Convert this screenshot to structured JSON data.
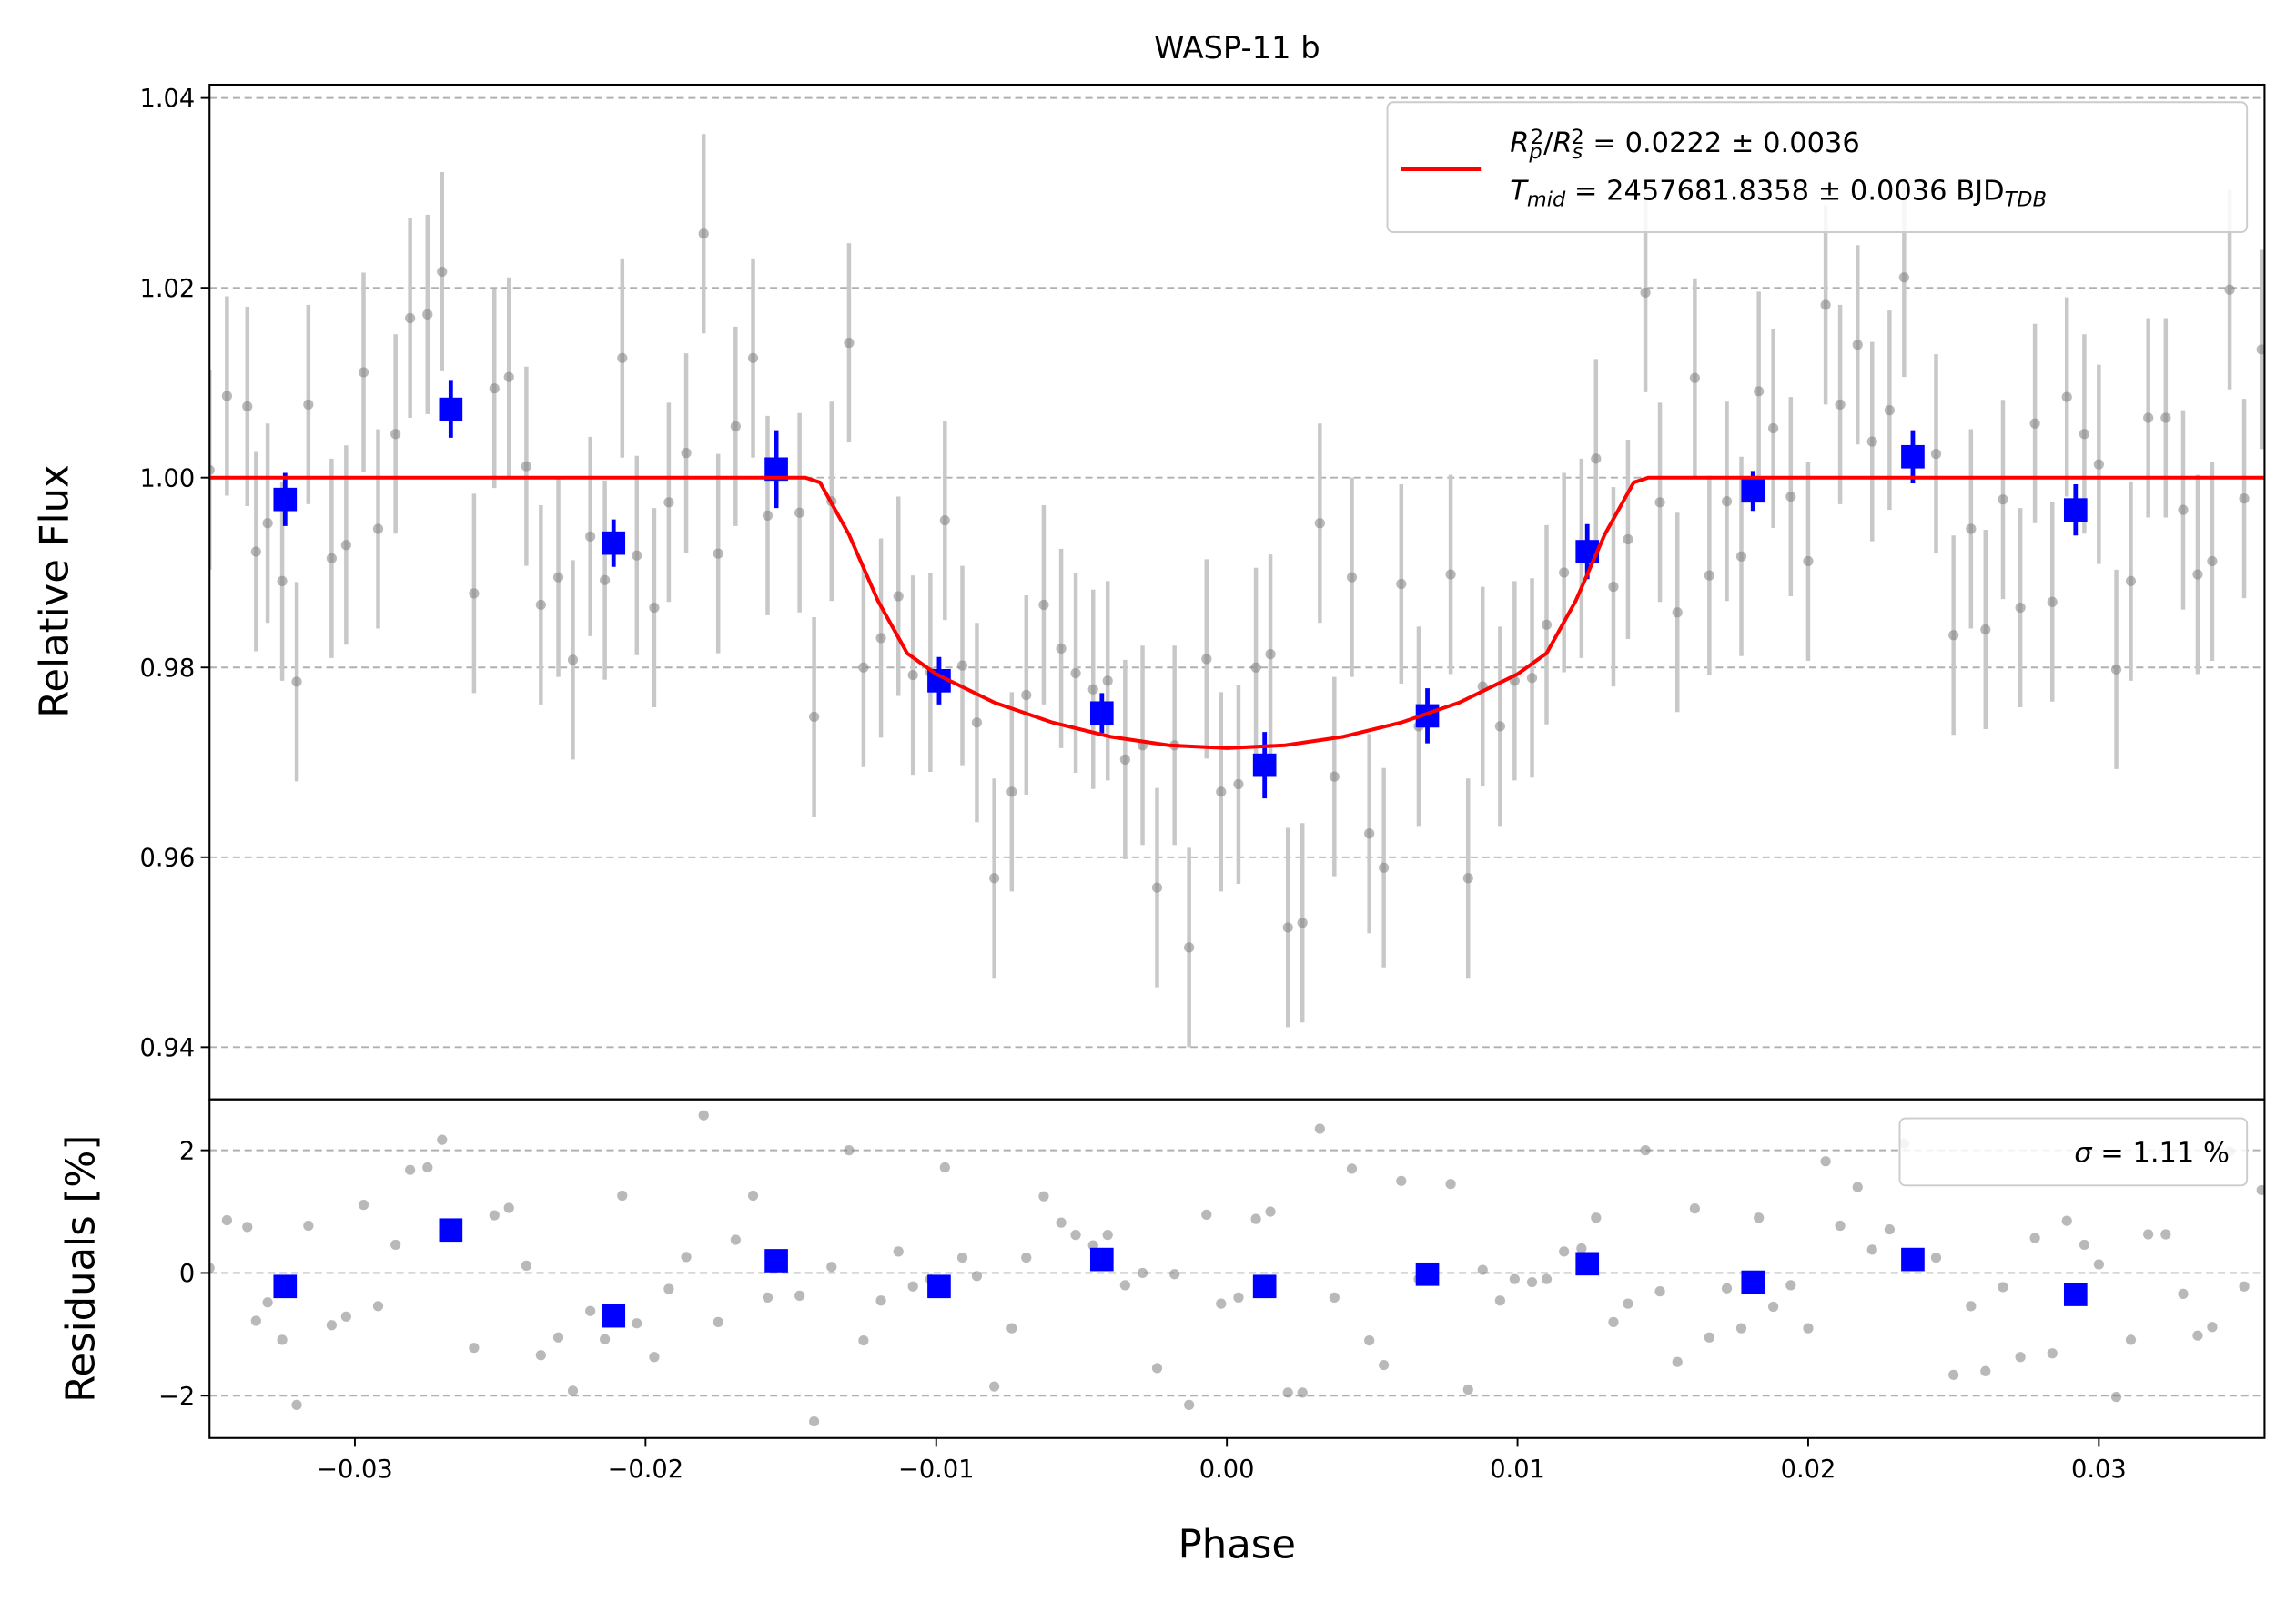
{
  "chart_data": [
    {
      "type": "errorbar",
      "title": "WASP-11 b",
      "ylabel": "Relative Flux",
      "ylim": [
        0.9345,
        1.0414
      ],
      "yticks": [
        0.94,
        0.96,
        0.98,
        {
          "value": 1.0,
          "label": "1.00"
        },
        1.02,
        1.04
      ],
      "grid": true,
      "legend": "upper right",
      "series": [
        {
          "type": "scatter",
          "marker": "circle",
          "color": "#808080",
          "error_color": "#c8c8c8",
          "error": 0.0105,
          "x": [
            -0.035,
            -0.0344,
            -0.0337,
            -0.0334,
            -0.033,
            -0.0325,
            -0.032,
            -0.0316,
            -0.0308,
            -0.0303,
            -0.0297,
            -0.0292,
            -0.0286,
            -0.0281,
            -0.0275,
            -0.027,
            -0.0259,
            -0.0252,
            -0.0247,
            -0.0241,
            -0.0236,
            -0.023,
            -0.0225,
            -0.0219,
            -0.0214,
            -0.0208,
            -0.0203,
            -0.0197,
            -0.0192,
            -0.0186,
            -0.018,
            -0.0175,
            -0.0169,
            -0.0163,
            -0.0158,
            -0.0147,
            -0.0142,
            -0.0136,
            -0.013,
            -0.0125,
            -0.0119,
            -0.0113,
            -0.0108,
            -0.0102,
            -0.0097,
            -0.0091,
            -0.0086,
            -0.008,
            -0.0074,
            -0.0069,
            -0.0063,
            -0.0057,
            -0.0052,
            -0.0046,
            -0.0041,
            -0.0035,
            -0.0029,
            -0.0024,
            -0.0018,
            -0.0013,
            -0.0007,
            -0.0002,
            0.0004,
            0.001,
            0.0015,
            0.0021,
            0.0026,
            0.0032,
            0.0037,
            0.0043,
            0.0049,
            0.0054,
            0.006,
            0.0066,
            0.0077,
            0.0083,
            0.0088,
            0.0094,
            0.0099,
            0.0105,
            0.011,
            0.0116,
            0.0122,
            0.0127,
            0.0133,
            0.0138,
            0.0144,
            0.0149,
            0.0155,
            0.0161,
            0.0166,
            0.0172,
            0.0177,
            0.0183,
            0.0188,
            0.0194,
            0.02,
            0.0206,
            0.0211,
            0.0217,
            0.0222,
            0.0228,
            0.0233,
            0.0244,
            0.025,
            0.0256,
            0.0261,
            0.0267,
            0.0273,
            0.0278,
            0.0284,
            0.0289,
            0.0295,
            0.03,
            0.0306,
            0.0311,
            0.0317,
            0.0323,
            0.0329,
            0.0334,
            0.0339,
            0.0345,
            0.035,
            0.0356
          ],
          "values": [
            1.0008,
            1.0086,
            1.0075,
            0.9922,
            0.9952,
            0.9891,
            0.9785,
            1.0077,
            0.9915,
            0.9929,
            1.0111,
            0.9946,
            1.0046,
            1.0168,
            1.0172,
            1.0217,
            0.9878,
            1.0094,
            1.0106,
            1.0012,
            0.9866,
            0.9895,
            0.9808,
            0.9938,
            0.9892,
            1.0126,
            0.9918,
            0.9863,
            0.9974,
            1.0026,
            1.0257,
            0.992,
            1.0054,
            1.0126,
            0.996,
            0.9963,
            0.9748,
            0.9975,
            1.0142,
            0.98,
            0.9831,
            0.9875,
            0.9792,
            0.9795,
            0.9955,
            0.9802,
            0.9742,
            0.9578,
            0.9669,
            0.9771,
            0.9866,
            0.982,
            0.9794,
            0.9777,
            0.9786,
            0.9703,
            0.9718,
            0.9568,
            0.9718,
            0.9505,
            0.9809,
            0.9669,
            0.9677,
            0.98,
            0.9814,
            0.9526,
            0.9531,
            0.9952,
            0.9685,
            0.9895,
            0.9625,
            0.9589,
            0.9888,
            0.9738,
            0.9898,
            0.9578,
            0.978,
            0.9738,
            0.9786,
            0.9789,
            0.9845,
            0.99,
            0.9915,
            1.002,
            0.9885,
            0.9935,
            1.0195,
            0.9974,
            0.9858,
            1.0105,
            0.9897,
            0.9975,
            0.9917,
            1.0091,
            1.0052,
            0.998,
            0.9912,
            1.0182,
            1.0077,
            1.014,
            1.0038,
            1.0071,
            1.0211,
            1.0025,
            0.9834,
            0.9946,
            0.984,
            0.9977,
            0.9863,
            1.0057,
            0.9869,
            1.0085,
            1.0046,
            1.0014,
            0.9798,
            0.9891,
            1.0063,
            1.0063,
            0.9966,
            0.9898,
            0.9912,
            1.0198,
            0.9978,
            1.0135
          ]
        },
        {
          "type": "scatter",
          "marker": "square",
          "color": "#0000ff",
          "error_color": "#0000ff",
          "x": [
            -0.0324,
            -0.0267,
            -0.0211,
            -0.0155,
            -0.0099,
            -0.0043,
            0.0013,
            0.0069,
            0.0124,
            0.0181,
            0.0236,
            0.0292
          ],
          "values": [
            0.9977,
            1.0072,
            0.9931,
            1.0009,
            0.9786,
            0.9752,
            0.9697,
            0.9749,
            0.9922,
            0.9986,
            1.0022,
            0.9966
          ],
          "errors": [
            0.0028,
            0.003,
            0.0025,
            0.0041,
            0.0025,
            0.0021,
            0.0035,
            0.0029,
            0.0029,
            0.0021,
            0.0028,
            0.0027
          ]
        },
        {
          "type": "line",
          "color": "#ff0000",
          "x": [
            -0.035,
            -0.0145,
            -0.014,
            -0.013,
            -0.012,
            -0.011,
            -0.01,
            -0.008,
            -0.006,
            -0.004,
            -0.002,
            0,
            0.002,
            0.004,
            0.006,
            0.008,
            0.01,
            0.011,
            0.012,
            0.013,
            0.014,
            0.0145,
            0.0357
          ],
          "values": [
            1,
            1,
            0.9995,
            0.994,
            0.987,
            0.9815,
            0.9793,
            0.9763,
            0.9742,
            0.9727,
            0.9718,
            0.9715,
            0.9718,
            0.9727,
            0.9742,
            0.9763,
            0.9793,
            0.9815,
            0.987,
            0.994,
            0.9995,
            1,
            1
          ],
          "legend_lines": [
            [
              {
                "text": "R",
                "italic": true
              },
              {
                "text": "p",
                "italic": true,
                "shift": "sub"
              },
              {
                "text": "2",
                "shift": "sup"
              },
              {
                "text": "/"
              },
              {
                "text": "R",
                "italic": true
              },
              {
                "text": "s",
                "italic": true,
                "shift": "sub"
              },
              {
                "text": "2",
                "shift": "sup"
              },
              {
                "text": " = 0.0222 ± 0.0036"
              }
            ],
            [
              {
                "text": "T",
                "italic": true
              },
              {
                "text": "mid",
                "italic": true,
                "shift": "sub"
              },
              {
                "text": " = 2457681.8358 ± 0.0036 BJD"
              },
              {
                "text": "TDB",
                "italic": true,
                "shift": "sub"
              }
            ]
          ]
        }
      ]
    },
    {
      "type": "errorbar",
      "xlabel": "Phase",
      "ylabel": "Residuals [%]",
      "xlim": [
        -0.035,
        0.0357
      ],
      "xticks": [
        {
          "value": -0.03,
          "label": "−0.03"
        },
        {
          "value": -0.02,
          "label": "−0.02"
        },
        {
          "value": -0.01,
          "label": "−0.01"
        },
        {
          "value": 0,
          "label": "0.00"
        },
        0.01,
        0.02,
        0.03
      ],
      "ylim": [
        -2.69,
        2.83
      ],
      "yticks": [
        {
          "value": -2,
          "label": "−2"
        },
        0,
        2
      ],
      "grid": true,
      "legend": "upper right",
      "legend_text": [
        {
          "text": "σ",
          "italic": true
        },
        {
          "text": " = 1.11 %"
        }
      ],
      "series": [
        {
          "type": "scatter",
          "marker": "circle",
          "color": "#808080",
          "x": [
            -0.035,
            -0.0344,
            -0.0337,
            -0.0334,
            -0.033,
            -0.0325,
            -0.032,
            -0.0316,
            -0.0308,
            -0.0303,
            -0.0297,
            -0.0292,
            -0.0286,
            -0.0281,
            -0.0275,
            -0.027,
            -0.0259,
            -0.0252,
            -0.0247,
            -0.0241,
            -0.0236,
            -0.023,
            -0.0225,
            -0.0219,
            -0.0214,
            -0.0208,
            -0.0203,
            -0.0197,
            -0.0192,
            -0.0186,
            -0.018,
            -0.0175,
            -0.0169,
            -0.0163,
            -0.0158,
            -0.0147,
            -0.0142,
            -0.0136,
            -0.013,
            -0.0125,
            -0.0119,
            -0.0113,
            -0.0108,
            -0.0102,
            -0.0097,
            -0.0091,
            -0.0086,
            -0.008,
            -0.0074,
            -0.0069,
            -0.0063,
            -0.0057,
            -0.0052,
            -0.0046,
            -0.0041,
            -0.0035,
            -0.0029,
            -0.0024,
            -0.0018,
            -0.0013,
            -0.0007,
            -0.0002,
            0.0004,
            0.001,
            0.0015,
            0.0021,
            0.0026,
            0.0032,
            0.0037,
            0.0043,
            0.0049,
            0.0054,
            0.006,
            0.0066,
            0.0077,
            0.0083,
            0.0088,
            0.0094,
            0.0099,
            0.0105,
            0.011,
            0.0116,
            0.0122,
            0.0127,
            0.0133,
            0.0138,
            0.0144,
            0.0149,
            0.0155,
            0.0161,
            0.0166,
            0.0172,
            0.0177,
            0.0183,
            0.0188,
            0.0194,
            0.02,
            0.0206,
            0.0211,
            0.0217,
            0.0222,
            0.0228,
            0.0233,
            0.0244,
            0.025,
            0.0256,
            0.0261,
            0.0267,
            0.0273,
            0.0278,
            0.0284,
            0.0289,
            0.0295,
            0.03,
            0.0306,
            0.0311,
            0.0317,
            0.0323,
            0.0329,
            0.0334,
            0.0339,
            0.0345,
            0.035,
            0.0356
          ],
          "values": [
            0.08,
            0.86,
            0.75,
            -0.78,
            -0.48,
            -1.09,
            -2.15,
            0.77,
            -0.85,
            -0.71,
            1.11,
            -0.54,
            0.46,
            1.68,
            1.72,
            2.17,
            -1.22,
            0.94,
            1.06,
            0.12,
            -1.34,
            -1.05,
            -1.92,
            -0.62,
            -1.08,
            1.26,
            -0.82,
            -1.37,
            -0.26,
            0.26,
            2.57,
            -0.8,
            0.54,
            1.26,
            -0.4,
            -0.37,
            -2.42,
            0.1,
            2.0,
            -1.1,
            -0.45,
            0.35,
            -0.22,
            -0.1,
            1.72,
            0.25,
            -0.05,
            -1.85,
            -0.9,
            0.25,
            1.25,
            0.82,
            0.62,
            0.45,
            0.62,
            -0.2,
            0,
            -1.55,
            -0.02,
            -2.15,
            0.95,
            -0.5,
            -0.4,
            0.88,
            1.0,
            -1.95,
            -1.95,
            2.35,
            -0.4,
            1.7,
            -1.1,
            -1.5,
            1.5,
            -0.1,
            1.45,
            -1.9,
            0.05,
            -0.45,
            -0.1,
            -0.15,
            -0.1,
            0.35,
            0.4,
            0.9,
            -0.8,
            -0.5,
            2.0,
            -0.3,
            -1.45,
            1.05,
            -1.05,
            -0.25,
            -0.9,
            0.9,
            -0.55,
            -0.2,
            -0.9,
            1.82,
            0.77,
            1.4,
            0.38,
            0.71,
            2.11,
            0.25,
            -1.66,
            -0.54,
            -1.6,
            -0.23,
            -1.37,
            0.57,
            -1.31,
            0.85,
            0.46,
            0.14,
            -2.02,
            -1.09,
            0.63,
            0.63,
            -0.34,
            -1.02,
            -0.88,
            1.98,
            -0.22,
            1.35
          ]
        },
        {
          "type": "scatter",
          "marker": "square",
          "color": "#0000ff",
          "x": [
            -0.0324,
            -0.0267,
            -0.0211,
            -0.0155,
            -0.0099,
            -0.0043,
            0.0013,
            0.0069,
            0.0124,
            0.0181,
            0.0236,
            0.0292
          ],
          "values": [
            -0.22,
            0.7,
            -0.7,
            0.2,
            -0.22,
            0.22,
            -0.22,
            -0.02,
            0.15,
            -0.15,
            0.22,
            -0.35
          ]
        }
      ]
    }
  ]
}
